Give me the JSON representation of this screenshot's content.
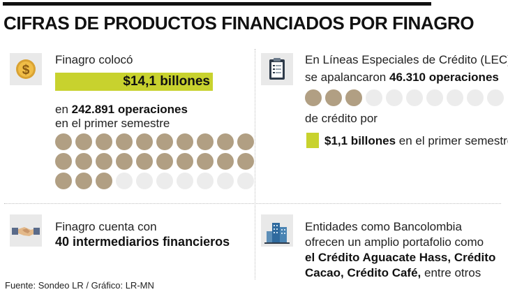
{
  "title": "CIFRAS DE PRODUCTOS FINANCIADOS POR FINAGRO",
  "block1": {
    "line1": "Finagro colocó",
    "highlight": "$14,1 billones",
    "line2_prefix": "en ",
    "line2_bold": "242.891 operaciones",
    "line3": "en el primer semestre",
    "dots_filled": 23,
    "dots_total": 30,
    "icon": "dollar-coin-icon"
  },
  "block2": {
    "line1": "En Líneas Especiales de Crédito (LEC)",
    "line2_prefix": "se apalancaron ",
    "line2_bold": "46.310 operaciones",
    "line3": "de crédito por",
    "line4_bold": "$1,1 billones",
    "line4_rest": " en el primer semestre",
    "dots_filled": 3,
    "dots_total": 10,
    "icon": "clipboard-icon"
  },
  "block3": {
    "line1": "Finagro cuenta con",
    "line2_bold": "40 intermediarios financieros",
    "icon": "handshake-icon"
  },
  "block4": {
    "line1": "Entidades como Bancolombia",
    "line2": "ofrecen un amplio portafolio como",
    "line3_bold": "el Crédito Aguacate Hass, Crédito",
    "line4_bold": "Cacao, Crédito Café,",
    "line4_rest": " entre otros",
    "icon": "buildings-icon"
  },
  "source": "Fuente: Sondeo LR  / Gráfico: LR-MN",
  "colors": {
    "highlight": "#c8d22e",
    "dot_filled": "#b19f83",
    "dot_empty": "#ececec"
  }
}
